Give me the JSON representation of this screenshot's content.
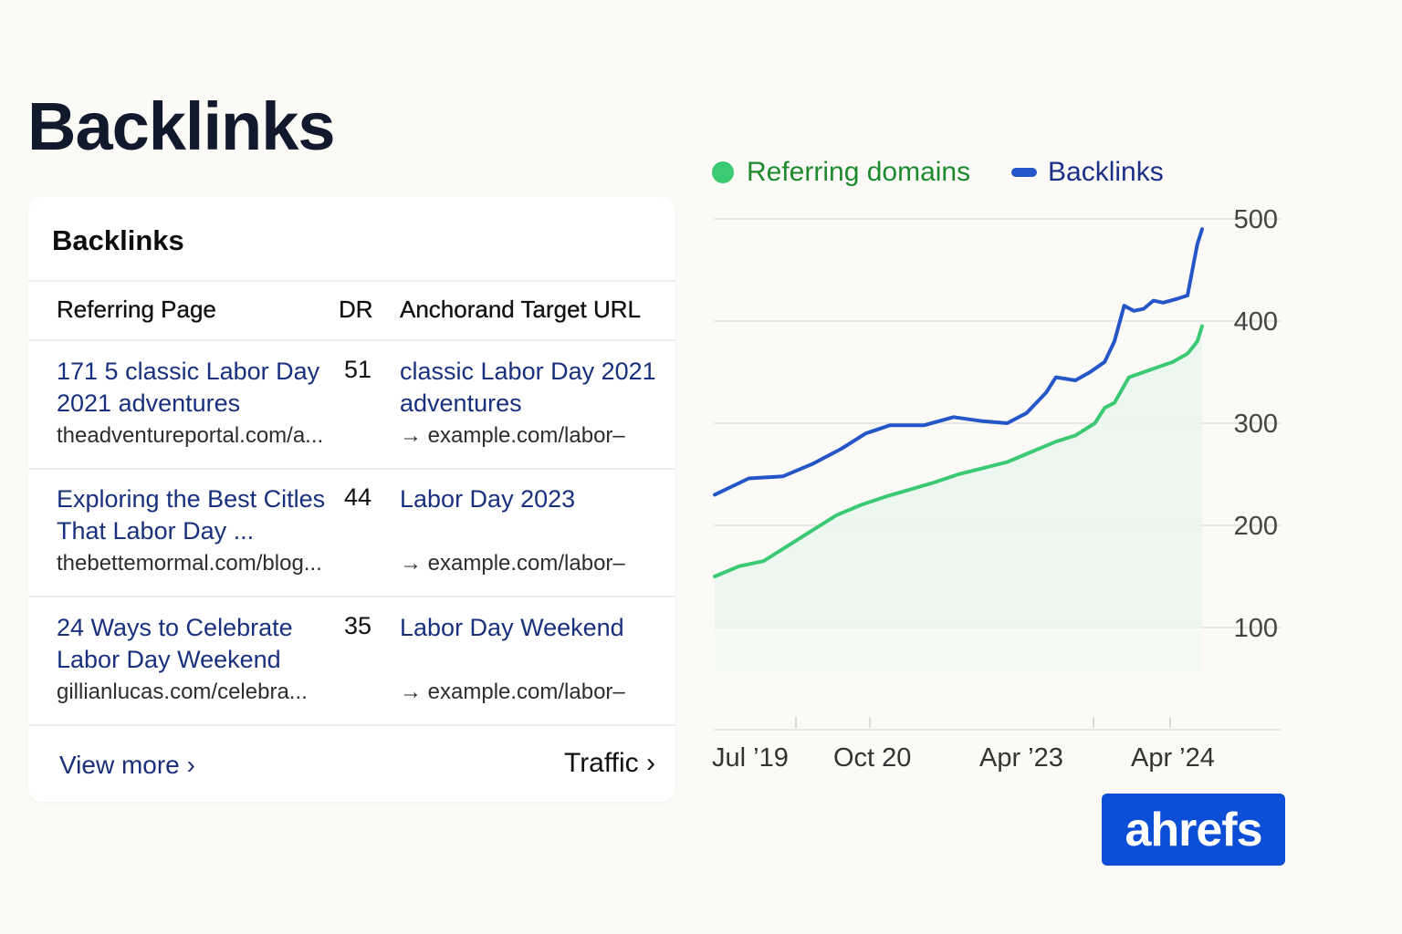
{
  "page_title": "Backlinks",
  "card": {
    "title": "Backlinks",
    "columns": {
      "referring_page": "Referring Page",
      "dr": "DR",
      "anchor_target": "Anchorand Target URL"
    },
    "rows": [
      {
        "title": "171 5 classic Labor Day 2021 adventures",
        "url": "theadventureportal.com/a...",
        "dr": "51",
        "anchor": "classic Labor Day 2021 adventures",
        "target": "→ example.com/labor–"
      },
      {
        "title": "Exploring the Best Citles That Labor Day ...",
        "url": "thebettemormal.com/blog...",
        "dr": "44",
        "anchor": "Labor Day 2023",
        "target": "→ example.com/labor–"
      },
      {
        "title": "24 Ways to Celebrate Labor Day Weekend",
        "url": "gillianlucas.com/celebra...",
        "dr": "35",
        "anchor": "Labor Day Weekend",
        "target": "→ example.com/labor–"
      }
    ],
    "view_more": "View more ›",
    "traffic": "Traffic ›"
  },
  "legend": {
    "referring_domains": "Referring domains",
    "backlinks": "Backlinks"
  },
  "colors": {
    "referring_domains": "#3cc974",
    "referring_domains_label": "#1e8a2e",
    "backlinks": "#2456c8",
    "backlinks_label": "#1a2f86",
    "logo_bg": "#0c4fd6"
  },
  "logo": "ahrefs",
  "chart_data": {
    "type": "line",
    "x_ticks": [
      "Jul ’19",
      "Oct 20",
      "Apr ’23",
      "Apr ’24"
    ],
    "y_ticks": [
      100,
      200,
      300,
      400,
      500
    ],
    "ylim": [
      0,
      500
    ],
    "grid": true,
    "legend_position": "top",
    "series": [
      {
        "name": "Backlinks",
        "x": [
          0,
          0.07,
          0.14,
          0.2,
          0.26,
          0.31,
          0.36,
          0.43,
          0.49,
          0.55,
          0.6,
          0.64,
          0.68,
          0.7,
          0.74,
          0.77,
          0.8,
          0.82,
          0.84,
          0.86,
          0.88,
          0.9,
          0.92,
          0.95,
          0.97,
          0.99,
          1.0
        ],
        "values": [
          230,
          246,
          248,
          260,
          275,
          290,
          298,
          298,
          306,
          302,
          300,
          310,
          330,
          345,
          342,
          350,
          360,
          380,
          415,
          410,
          412,
          420,
          418,
          422,
          425,
          475,
          490
        ]
      },
      {
        "name": "Referring domains",
        "x": [
          0,
          0.05,
          0.1,
          0.15,
          0.2,
          0.25,
          0.3,
          0.35,
          0.4,
          0.45,
          0.5,
          0.55,
          0.6,
          0.65,
          0.7,
          0.74,
          0.78,
          0.8,
          0.82,
          0.85,
          0.88,
          0.91,
          0.94,
          0.97,
          0.99,
          1.0
        ],
        "values": [
          150,
          160,
          165,
          180,
          195,
          210,
          220,
          228,
          235,
          242,
          250,
          256,
          262,
          272,
          282,
          288,
          300,
          315,
          320,
          345,
          350,
          355,
          360,
          368,
          380,
          395
        ]
      }
    ]
  }
}
